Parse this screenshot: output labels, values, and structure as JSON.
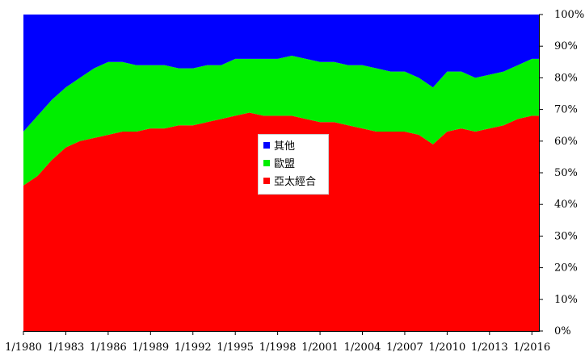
{
  "chart_data": {
    "type": "area",
    "stacked": true,
    "percent": true,
    "x_tick_labels": [
      "1/1980",
      "1/1983",
      "1/1986",
      "1/1989",
      "1/1992",
      "1/1995",
      "1/1998",
      "1/2001",
      "1/2004",
      "1/2007",
      "1/2010",
      "1/2013",
      "1/2016"
    ],
    "y_tick_labels": [
      "0%",
      "10%",
      "20%",
      "30%",
      "40%",
      "50%",
      "60%",
      "70%",
      "80%",
      "90%",
      "100%"
    ],
    "ylim": [
      0,
      100
    ],
    "y_axis_side": "right",
    "legend_position": "center",
    "series_colors": [
      "#ff0000",
      "#00ee00",
      "#0000ff"
    ],
    "x": [
      "1/1980",
      "1/1981",
      "1/1982",
      "1/1983",
      "1/1984",
      "1/1985",
      "1/1986",
      "1/1987",
      "1/1988",
      "1/1989",
      "1/1990",
      "1/1991",
      "1/1992",
      "1/1993",
      "1/1994",
      "1/1995",
      "1/1996",
      "1/1997",
      "1/1998",
      "1/1999",
      "1/2000",
      "1/2001",
      "1/2002",
      "1/2003",
      "1/2004",
      "1/2005",
      "1/2006",
      "1/2007",
      "1/2008",
      "1/2009",
      "1/2010",
      "1/2011",
      "1/2012",
      "1/2013",
      "1/2014",
      "1/2015",
      "1/2016",
      "7/2016"
    ],
    "series": [
      {
        "name": "亞太經合",
        "values": [
          46,
          49,
          54,
          58,
          60,
          61,
          62,
          63,
          63,
          64,
          64,
          65,
          65,
          66,
          67,
          68,
          69,
          68,
          68,
          68,
          67,
          66,
          66,
          65,
          64,
          63,
          63,
          63,
          62,
          59,
          63,
          64,
          63,
          64,
          65,
          67,
          68,
          68
        ]
      },
      {
        "name": "歐盟",
        "values": [
          17,
          19,
          19,
          19,
          20,
          22,
          23,
          22,
          21,
          20,
          20,
          18,
          18,
          18,
          17,
          18,
          17,
          18,
          18,
          19,
          19,
          19,
          19,
          19,
          20,
          20,
          19,
          19,
          18,
          18,
          19,
          18,
          17,
          17,
          17,
          17,
          18,
          18
        ]
      },
      {
        "name": "其他",
        "values": [
          37,
          32,
          27,
          23,
          20,
          17,
          15,
          15,
          16,
          16,
          16,
          17,
          17,
          16,
          16,
          14,
          14,
          14,
          14,
          13,
          14,
          15,
          15,
          16,
          16,
          17,
          18,
          18,
          20,
          23,
          18,
          18,
          20,
          19,
          18,
          16,
          14,
          14
        ]
      }
    ]
  },
  "legend": [
    {
      "label": "其他",
      "color": "#0000ff"
    },
    {
      "label": "歐盟",
      "color": "#00ee00"
    },
    {
      "label": "亞太經合",
      "color": "#ff0000"
    }
  ]
}
